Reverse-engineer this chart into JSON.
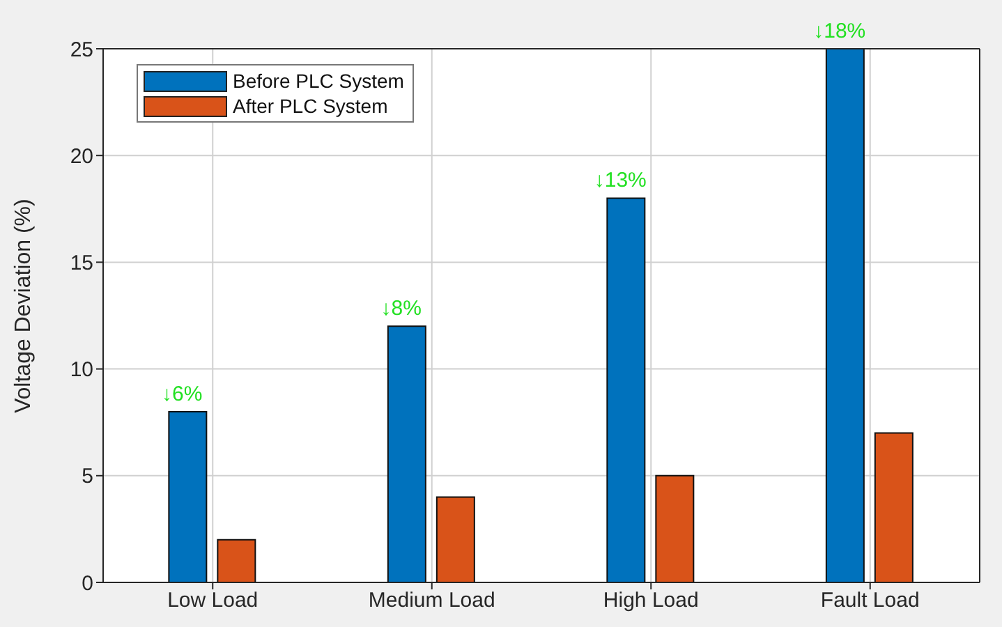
{
  "chart_data": {
    "type": "bar",
    "ylabel": "Voltage Deviation (%)",
    "categories": [
      "Low Load",
      "Medium Load",
      "High Load",
      "Fault Load"
    ],
    "series": [
      {
        "name": "Before PLC System",
        "color": "#0072bd",
        "values": [
          8,
          12,
          18,
          25
        ]
      },
      {
        "name": "After PLC System",
        "color": "#d95319",
        "values": [
          2,
          4,
          5,
          7
        ]
      }
    ],
    "ylim": [
      0,
      25
    ],
    "yticks": [
      0,
      5,
      10,
      15,
      20,
      25
    ],
    "grid": true,
    "legend": "top left",
    "annotations": [
      {
        "text": "↓6%",
        "x": "Low Load",
        "y": 8
      },
      {
        "text": "↓8%",
        "x": "Medium Load",
        "y": 12
      },
      {
        "text": "↓13%",
        "x": "High Load",
        "y": 18
      },
      {
        "text": "↓18%",
        "x": "Fault Load",
        "y": 25
      }
    ]
  }
}
